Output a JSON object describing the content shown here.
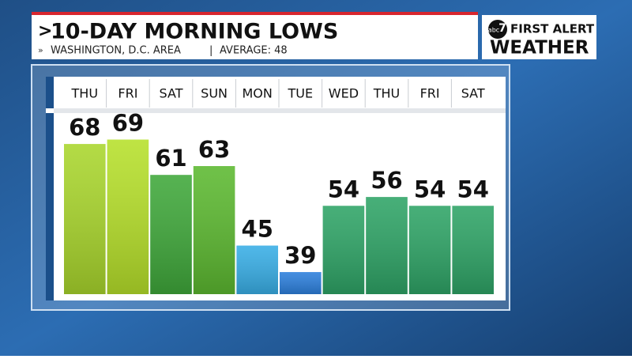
{
  "chart_data": {
    "type": "bar",
    "title": "10-DAY MORNING LOWS",
    "subtitle": "WASHINGTON, D.C. AREA",
    "average": "AVERAGE: 48",
    "brand": {
      "logo": "abc",
      "channel": "7",
      "line1": "FIRST ALERT",
      "line2": "WEATHER"
    },
    "categories": [
      "THU",
      "FRI",
      "SAT",
      "SUN",
      "MON",
      "TUE",
      "WED",
      "THU",
      "FRI",
      "SAT"
    ],
    "values": [
      68,
      69,
      61,
      63,
      45,
      39,
      54,
      56,
      54,
      54
    ],
    "colors": [
      "#a9d62c",
      "#b6e02a",
      "#3fa83a",
      "#5cb930",
      "#38aee6",
      "#2c7fdc",
      "#2ea466",
      "#2ea466",
      "#2ea466",
      "#2ea466"
    ],
    "ylim": [
      34,
      75
    ]
  }
}
